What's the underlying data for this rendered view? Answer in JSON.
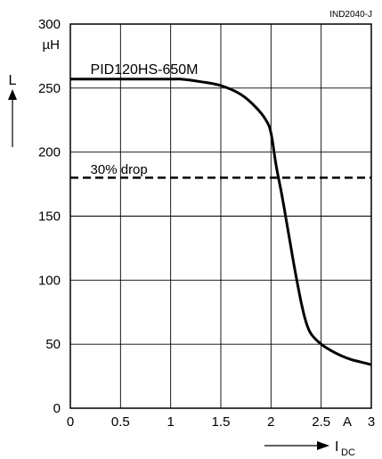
{
  "chart_data": {
    "type": "line",
    "title": "",
    "figure_code": "IND2040-J",
    "ylabel": "L",
    "yunit": "µH",
    "xlabel_main": "I",
    "xlabel_sub": "DC",
    "xunit": "A",
    "xlim": [
      0,
      3
    ],
    "ylim": [
      0,
      300
    ],
    "xticks": [
      {
        "value": 0,
        "label": "0"
      },
      {
        "value": 0.5,
        "label": "0.5"
      },
      {
        "value": 1,
        "label": "1"
      },
      {
        "value": 1.5,
        "label": "1.5"
      },
      {
        "value": 2,
        "label": "2"
      },
      {
        "value": 2.5,
        "label": "2.5"
      },
      {
        "value": 3,
        "label": "3"
      }
    ],
    "yticks": [
      {
        "value": 0,
        "label": "0"
      },
      {
        "value": 50,
        "label": "50"
      },
      {
        "value": 100,
        "label": "100"
      },
      {
        "value": 150,
        "label": "150"
      },
      {
        "value": 200,
        "label": "200"
      },
      {
        "value": 250,
        "label": "250"
      },
      {
        "value": 300,
        "label": "300"
      }
    ],
    "grid": true,
    "series": [
      {
        "name": "PID120HS-650M",
        "label_at": [
          0.2,
          261
        ],
        "x": [
          0,
          0.5,
          1.0,
          1.1,
          1.3,
          1.5,
          1.7,
          1.85,
          1.95,
          2.0,
          2.05,
          2.1,
          2.15,
          2.2,
          2.25,
          2.3,
          2.35,
          2.4,
          2.5,
          2.6,
          2.7,
          2.8,
          2.9,
          3.0
        ],
        "values": [
          257,
          257,
          257,
          257,
          255,
          252,
          245,
          235,
          225,
          215,
          190,
          170,
          148,
          125,
          103,
          83,
          67,
          58,
          50,
          45,
          41,
          38,
          36,
          34
        ]
      },
      {
        "name": "30% drop",
        "style": "dashed",
        "label_at": [
          0.2,
          183
        ],
        "x": [
          0,
          3
        ],
        "values": [
          180,
          180
        ]
      }
    ]
  }
}
